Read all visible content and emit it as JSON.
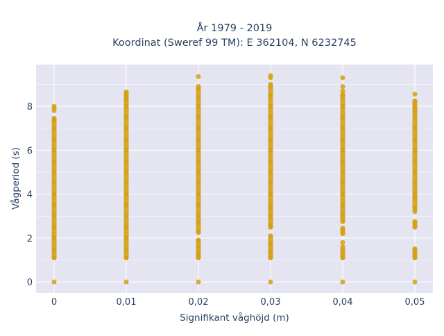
{
  "chart_data": {
    "type": "scatter",
    "title_line1": "År 1979 - 2019",
    "title_line2": "Koordinat (Sweref 99 TM): E 362104, N 6232745",
    "xlabel": "Signifikant våghöjd (m)",
    "ylabel": "Vågperiod (s)",
    "x_tick_labels": [
      "0",
      "0,01",
      "0,02",
      "0,03",
      "0,04",
      "0,05"
    ],
    "x_tick_values": [
      0,
      0.01,
      0.02,
      0.03,
      0.04,
      0.05
    ],
    "y_tick_labels": [
      "0",
      "2",
      "4",
      "6",
      "8"
    ],
    "y_tick_values": [
      0,
      2,
      4,
      6,
      8
    ],
    "xlim": [
      -0.0025,
      0.0525
    ],
    "ylim": [
      -0.5,
      9.9
    ],
    "grid": true,
    "marker_color": "#d4a017",
    "background_color": "#e5e5f2",
    "points": [
      {
        "x": 0,
        "values": [
          0,
          1.1,
          1.5,
          2.0,
          2.5,
          3.0,
          3.5,
          4.0,
          4.5,
          5.0,
          5.5,
          6.0,
          6.5,
          7.0,
          7.3,
          7.4,
          7.8,
          7.9,
          8.0
        ]
      },
      {
        "x": 0.01,
        "values": [
          0,
          1.1,
          1.5,
          2.0,
          2.5,
          3.0,
          3.5,
          4.0,
          4.5,
          5.0,
          5.5,
          6.0,
          6.5,
          7.0,
          7.5,
          8.0,
          8.3,
          8.5,
          8.6
        ]
      },
      {
        "x": 0.02,
        "values": [
          0,
          1.1,
          1.3,
          1.6,
          1.9,
          2.3,
          2.7,
          3.0,
          3.5,
          4.0,
          4.5,
          5.0,
          5.5,
          6.0,
          6.5,
          7.0,
          7.5,
          8.0,
          8.4,
          8.8,
          9.35
        ]
      },
      {
        "x": 0.03,
        "values": [
          0,
          1.1,
          1.4,
          1.7,
          2.1,
          2.5,
          2.6,
          3.0,
          3.3,
          3.5,
          4.0,
          4.5,
          5.0,
          5.5,
          6.0,
          6.5,
          7.0,
          7.5,
          8.0,
          8.5,
          8.9,
          9.3,
          9.4
        ]
      },
      {
        "x": 0.04,
        "values": [
          0,
          1.1,
          1.4,
          1.8,
          2.2,
          2.4,
          2.8,
          3.1,
          3.5,
          4.0,
          4.5,
          5.0,
          5.5,
          6.0,
          6.5,
          7.0,
          7.5,
          8.0,
          8.5,
          8.7,
          8.9,
          9.3
        ]
      },
      {
        "x": 0.05,
        "values": [
          0,
          1.1,
          1.3,
          1.5,
          2.5,
          2.7,
          3.2,
          3.4,
          3.8,
          4.0,
          4.5,
          5.0,
          5.5,
          6.0,
          6.5,
          7.0,
          7.5,
          7.8,
          8.0,
          8.2,
          8.55
        ]
      }
    ],
    "vertical_ranges": [
      {
        "x": 0,
        "segments": [
          [
            1.1,
            7.45
          ]
        ]
      },
      {
        "x": 0.01,
        "segments": [
          [
            1.1,
            8.65
          ]
        ]
      },
      {
        "x": 0.02,
        "segments": [
          [
            1.1,
            1.9
          ],
          [
            2.25,
            8.9
          ]
        ]
      },
      {
        "x": 0.03,
        "segments": [
          [
            1.1,
            2.05
          ],
          [
            2.5,
            9.0
          ]
        ]
      },
      {
        "x": 0.04,
        "segments": [
          [
            1.1,
            1.6
          ],
          [
            2.2,
            2.45
          ],
          [
            2.75,
            8.55
          ]
        ]
      },
      {
        "x": 0.05,
        "segments": [
          [
            1.1,
            1.5
          ],
          [
            2.5,
            2.75
          ],
          [
            3.3,
            8.25
          ]
        ]
      }
    ]
  }
}
